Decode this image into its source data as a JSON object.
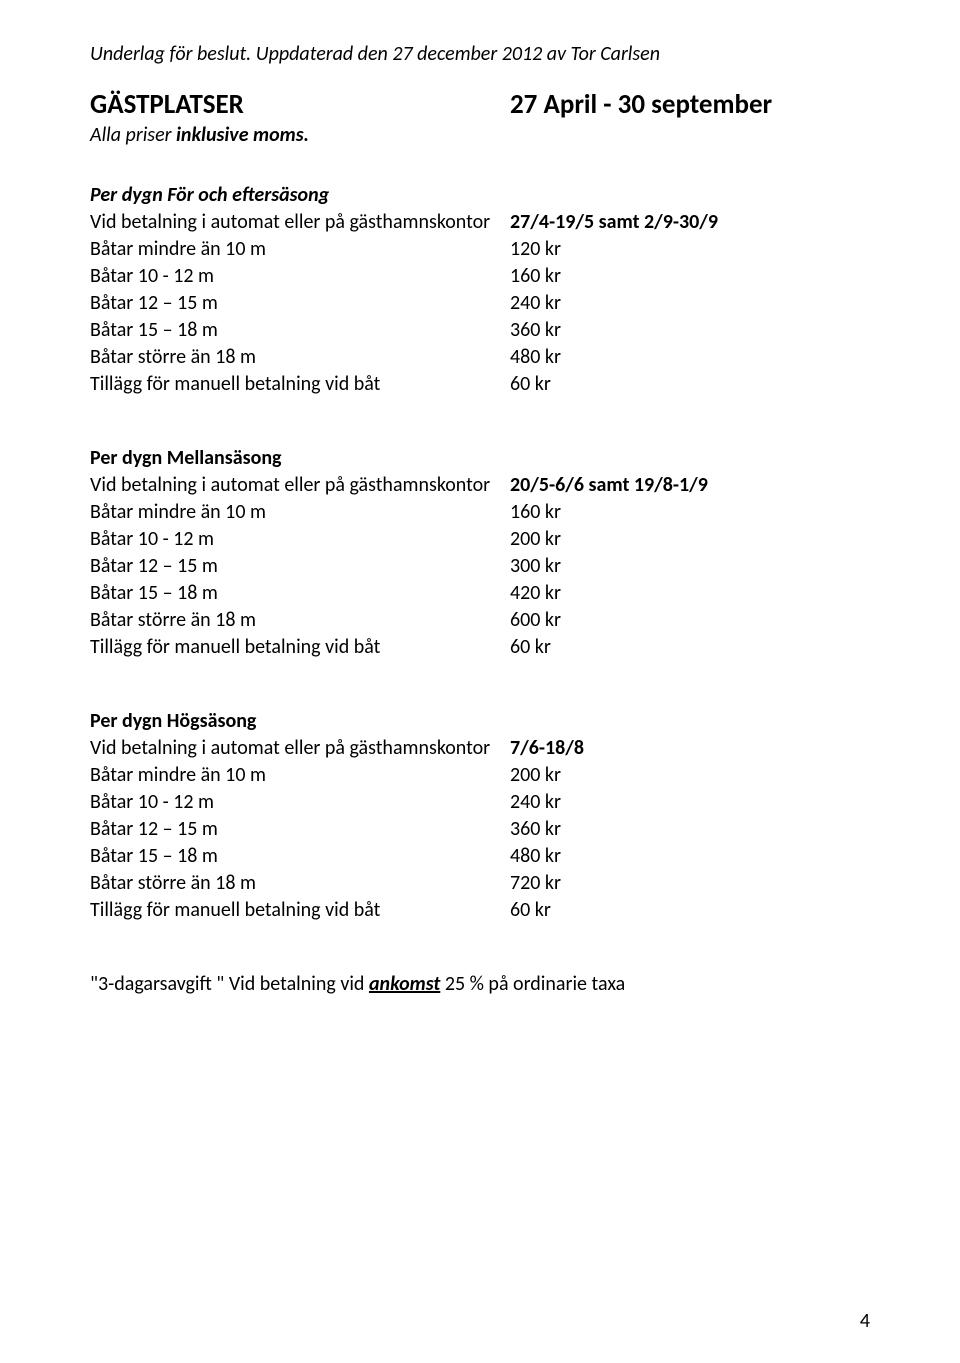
{
  "header_text": "Underlag för beslut. Uppdaterad den 27 december  2012 av Tor Carlsen",
  "title": "GÄSTPLATSER",
  "title_period": "27 April - 30 september",
  "subtitle_prefix": "Alla priser ",
  "subtitle_bolditalic": "inklusive moms.",
  "sections": [
    {
      "heading": "Per dygn För och eftersäsong",
      "heading_italic": true,
      "rows": [
        {
          "l": "Vid betalning i automat eller på gästhamnskontor",
          "r": "27/4-19/5 samt 2/9-30/9",
          "r_bold": true
        },
        {
          "l": "Båtar mindre än 10 m",
          "r": "120 kr"
        },
        {
          "l": "Båtar 10 - 12 m",
          "r": "160 kr"
        },
        {
          "l": "Båtar 12 – 15 m",
          "r": "240 kr"
        },
        {
          "l": "Båtar 15 – 18 m",
          "r": "360 kr"
        },
        {
          "l": "Båtar större än 18 m",
          "r": "480 kr"
        },
        {
          "l": "Tillägg för manuell betalning vid båt",
          "r": "60 kr"
        }
      ]
    },
    {
      "heading": "Per dygn Mellansäsong",
      "heading_italic": false,
      "rows": [
        {
          "l": "Vid betalning i automat eller på gästhamnskontor",
          "r": "20/5-6/6 samt 19/8-1/9",
          "r_bold": true
        },
        {
          "l": "Båtar mindre än 10 m",
          "r": "160 kr"
        },
        {
          "l": "Båtar 10 - 12 m",
          "r": "200 kr"
        },
        {
          "l": "Båtar 12 – 15 m",
          "r": "300 kr"
        },
        {
          "l": "Båtar 15 – 18 m",
          "r": "420 kr"
        },
        {
          "l": "Båtar större än 18 m",
          "r": "600 kr"
        },
        {
          "l": "Tillägg för manuell betalning vid båt",
          "r": "60 kr"
        }
      ]
    },
    {
      "heading": "Per dygn Högsäsong",
      "heading_italic": false,
      "rows": [
        {
          "l": "Vid betalning i automat eller på gästhamnskontor",
          "r": "7/6-18/8",
          "r_bold": true
        },
        {
          "l": "Båtar mindre än 10 m",
          "r": "200 kr"
        },
        {
          "l": "Båtar 10 - 12 m",
          "r": "240 kr"
        },
        {
          "l": "Båtar 12 – 15 m",
          "r": "360 kr"
        },
        {
          "l": "Båtar 15 – 18 m",
          "r": "480 kr"
        },
        {
          "l": "Båtar större än 18 m",
          "r": "720 kr"
        },
        {
          "l": "Tillägg för manuell betalning vid båt",
          "r": "60 kr"
        }
      ]
    }
  ],
  "footnote_prefix": "\"3-dagarsavgift \" Vid betalning vid ",
  "footnote_underline": "ankomst",
  "footnote_suffix": " 25 % på ordinarie taxa",
  "page_number": "4"
}
